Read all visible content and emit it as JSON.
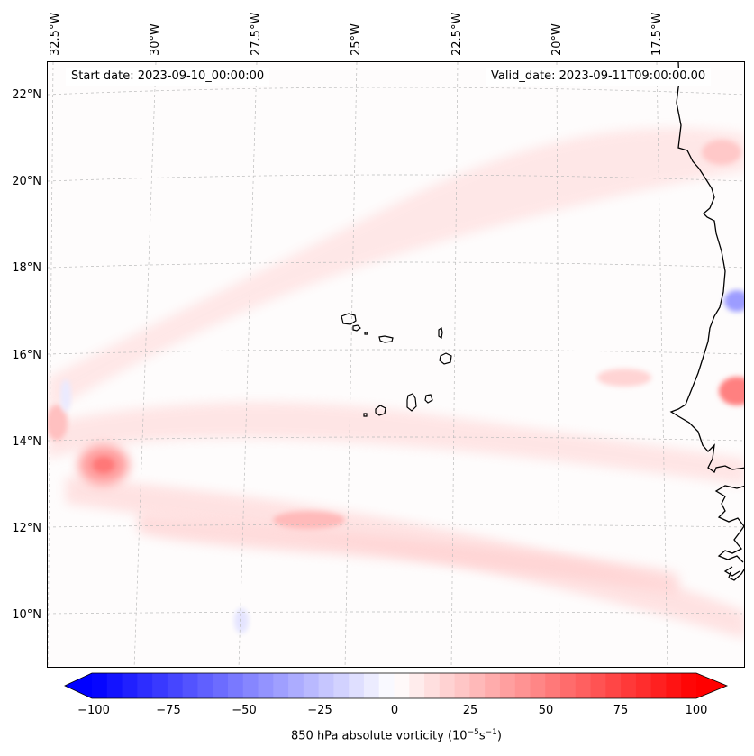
{
  "header": {
    "start_date": "Start date: 2023-09-10_00:00:00",
    "valid_date": "Valid_date: 2023-09-11T09:00:00.00"
  },
  "map": {
    "lon_labels": [
      "32.5°W",
      "30°W",
      "27.5°W",
      "25°W",
      "22.5°W",
      "20°W",
      "17.5°W"
    ],
    "lat_labels": [
      "22°N",
      "20°N",
      "18°N",
      "16°N",
      "14°N",
      "12°N",
      "10°N"
    ],
    "features": [
      "Cape Verde islands",
      "West African coastline"
    ]
  },
  "colorbar": {
    "ticks": [
      "−100",
      "−75",
      "−50",
      "−25",
      "0",
      "25",
      "50",
      "75",
      "100"
    ],
    "min": -100,
    "max": 100,
    "label_prefix": "850 hPa absolute vorticity (10",
    "exp1": "−5",
    "label_mid": "s",
    "exp2": "−1",
    "label_suffix": ")",
    "neg_color": "#0000ff",
    "pos_color": "#ff0000"
  }
}
